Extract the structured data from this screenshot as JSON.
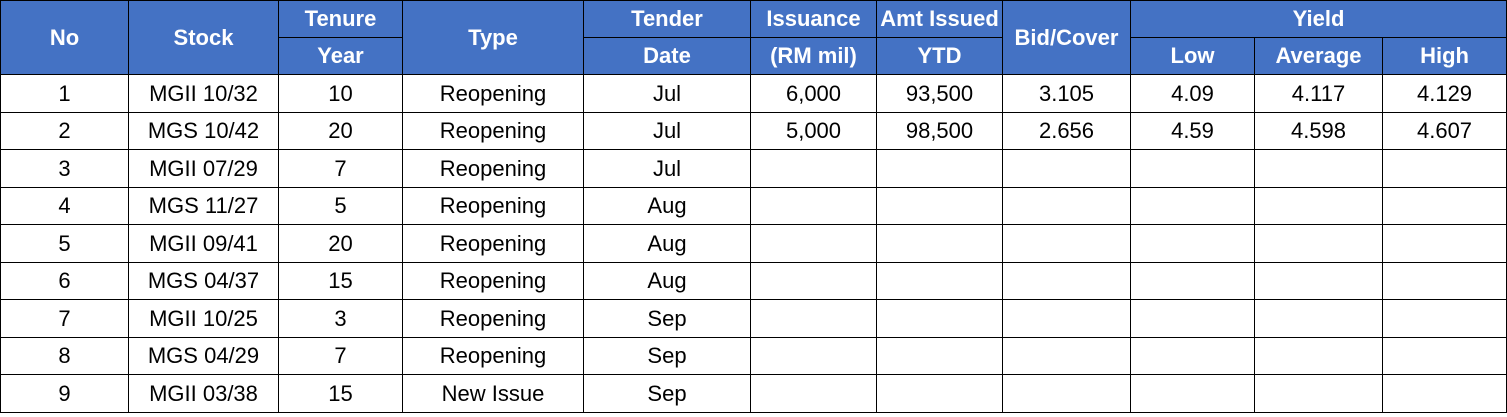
{
  "header": {
    "no": "No",
    "stock": "Stock",
    "tenure": [
      "Tenure",
      "Year"
    ],
    "type": "Type",
    "tender": [
      "Tender",
      "Date"
    ],
    "issuance": [
      "Issuance",
      "(RM mil)"
    ],
    "amt_issued": [
      "Amt Issued",
      "YTD"
    ],
    "bid_cover": "Bid/Cover",
    "yield": "Yield",
    "yield_low": "Low",
    "yield_average": "Average",
    "yield_high": "High"
  },
  "rows": [
    {
      "no": "1",
      "stock": "MGII 10/32",
      "tenure": "10",
      "type": "Reopening",
      "date": "Jul",
      "issuance": "6,000",
      "amt": "93,500",
      "bid": "3.105",
      "low": "4.09",
      "avg": "4.117",
      "high": "4.129"
    },
    {
      "no": "2",
      "stock": "MGS 10/42",
      "tenure": "20",
      "type": "Reopening",
      "date": "Jul",
      "issuance": "5,000",
      "amt": "98,500",
      "bid": "2.656",
      "low": "4.59",
      "avg": "4.598",
      "high": "4.607"
    },
    {
      "no": "3",
      "stock": "MGII 07/29",
      "tenure": "7",
      "type": "Reopening",
      "date": "Jul",
      "issuance": "",
      "amt": "",
      "bid": "",
      "low": "",
      "avg": "",
      "high": ""
    },
    {
      "no": "4",
      "stock": "MGS 11/27",
      "tenure": "5",
      "type": "Reopening",
      "date": "Aug",
      "issuance": "",
      "amt": "",
      "bid": "",
      "low": "",
      "avg": "",
      "high": ""
    },
    {
      "no": "5",
      "stock": "MGII 09/41",
      "tenure": "20",
      "type": "Reopening",
      "date": "Aug",
      "issuance": "",
      "amt": "",
      "bid": "",
      "low": "",
      "avg": "",
      "high": ""
    },
    {
      "no": "6",
      "stock": "MGS 04/37",
      "tenure": "15",
      "type": "Reopening",
      "date": "Aug",
      "issuance": "",
      "amt": "",
      "bid": "",
      "low": "",
      "avg": "",
      "high": ""
    },
    {
      "no": "7",
      "stock": "MGII 10/25",
      "tenure": "3",
      "type": "Reopening",
      "date": "Sep",
      "issuance": "",
      "amt": "",
      "bid": "",
      "low": "",
      "avg": "",
      "high": ""
    },
    {
      "no": "8",
      "stock": "MGS 04/29",
      "tenure": "7",
      "type": "Reopening",
      "date": "Sep",
      "issuance": "",
      "amt": "",
      "bid": "",
      "low": "",
      "avg": "",
      "high": ""
    },
    {
      "no": "9",
      "stock": "MGII 03/38",
      "tenure": "15",
      "type": "New Issue",
      "date": "Sep",
      "issuance": "",
      "amt": "",
      "bid": "",
      "low": "",
      "avg": "",
      "high": ""
    }
  ],
  "colors": {
    "header_bg": "#4472c4",
    "header_text": "#ffffff",
    "border": "#000000"
  }
}
